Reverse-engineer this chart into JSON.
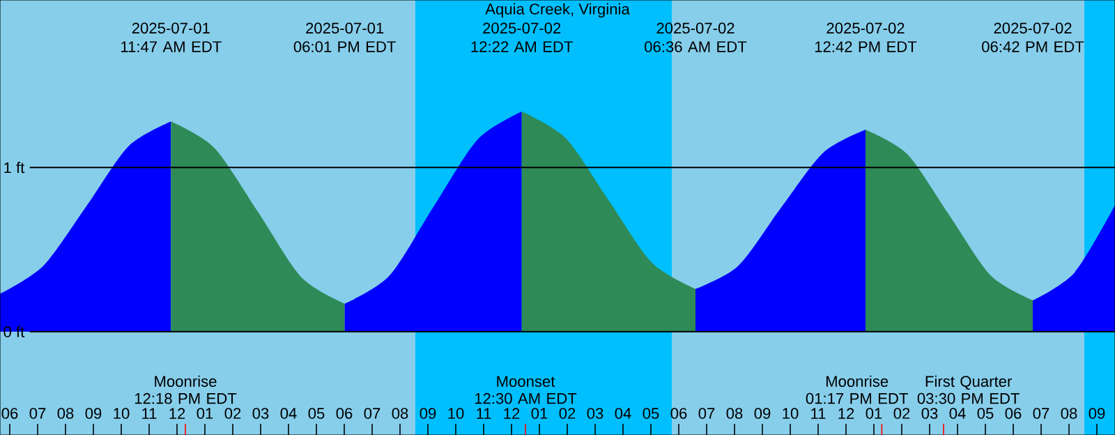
{
  "chart_data": {
    "type": "area",
    "title": "Aquia Creek, Virginia",
    "xlim": [
      "2025-07-01T05:39",
      "2025-07-02T21:39"
    ],
    "ylim": [
      -0.63,
      2.02
    ],
    "xticks": [
      {
        "value": "2025-07-01T06:00",
        "label": "06"
      },
      {
        "value": "2025-07-01T07:00",
        "label": "07"
      },
      {
        "value": "2025-07-01T08:00",
        "label": "08"
      },
      {
        "value": "2025-07-01T09:00",
        "label": "09"
      },
      {
        "value": "2025-07-01T10:00",
        "label": "10"
      },
      {
        "value": "2025-07-01T11:00",
        "label": "11"
      },
      {
        "value": "2025-07-01T12:00",
        "label": "12"
      },
      {
        "value": "2025-07-01T12:18",
        "label": null
      },
      {
        "value": "2025-07-01T13:00",
        "label": "01"
      },
      {
        "value": "2025-07-01T14:00",
        "label": "02"
      },
      {
        "value": "2025-07-01T15:00",
        "label": "03"
      },
      {
        "value": "2025-07-01T16:00",
        "label": "04"
      },
      {
        "value": "2025-07-01T17:00",
        "label": "05"
      },
      {
        "value": "2025-07-01T18:00",
        "label": "06"
      },
      {
        "value": "2025-07-01T19:00",
        "label": "07"
      },
      {
        "value": "2025-07-01T20:00",
        "label": "08"
      },
      {
        "value": "2025-07-01T21:00",
        "label": "09"
      },
      {
        "value": "2025-07-01T22:00",
        "label": "10"
      },
      {
        "value": "2025-07-01T23:00",
        "label": "11"
      },
      {
        "value": "2025-07-02T00:00",
        "label": "12"
      },
      {
        "value": "2025-07-02T00:30",
        "label": null
      },
      {
        "value": "2025-07-02T01:00",
        "label": "01"
      },
      {
        "value": "2025-07-02T02:00",
        "label": "02"
      },
      {
        "value": "2025-07-02T03:00",
        "label": "03"
      },
      {
        "value": "2025-07-02T04:00",
        "label": "04"
      },
      {
        "value": "2025-07-02T05:00",
        "label": "05"
      },
      {
        "value": "2025-07-02T06:00",
        "label": "06"
      },
      {
        "value": "2025-07-02T07:00",
        "label": "07"
      },
      {
        "value": "2025-07-02T08:00",
        "label": "08"
      },
      {
        "value": "2025-07-02T09:00",
        "label": "09"
      },
      {
        "value": "2025-07-02T10:00",
        "label": "10"
      },
      {
        "value": "2025-07-02T11:00",
        "label": "11"
      },
      {
        "value": "2025-07-02T12:00",
        "label": "12"
      },
      {
        "value": "2025-07-02T13:00",
        "label": "01"
      },
      {
        "value": "2025-07-02T13:17",
        "label": null
      },
      {
        "value": "2025-07-02T14:00",
        "label": "02"
      },
      {
        "value": "2025-07-02T15:00",
        "label": "03"
      },
      {
        "value": "2025-07-02T15:30",
        "label": null
      },
      {
        "value": "2025-07-02T16:00",
        "label": "04"
      },
      {
        "value": "2025-07-02T17:00",
        "label": "05"
      },
      {
        "value": "2025-07-02T18:00",
        "label": "06"
      },
      {
        "value": "2025-07-02T19:00",
        "label": "07"
      },
      {
        "value": "2025-07-02T20:00",
        "label": "08"
      },
      {
        "value": "2025-07-02T21:00",
        "label": "09"
      }
    ],
    "yticks": [
      {
        "value": 0,
        "label": "0 ft"
      },
      {
        "value": 1,
        "label": "1 ft"
      }
    ],
    "grid": "y",
    "bands": [
      {
        "axis": "x",
        "from": "2025-07-01T05:39",
        "to": "2025-07-01T20:33",
        "color": "#87ceeb"
      },
      {
        "axis": "x",
        "from": "2025-07-01T20:33",
        "to": "2025-07-02T05:45",
        "color": "#00bfff"
      },
      {
        "axis": "x",
        "from": "2025-07-02T05:45",
        "to": "2025-07-02T20:33",
        "color": "#87ceeb"
      },
      {
        "axis": "x",
        "from": "2025-07-02T20:33",
        "to": "2025-07-02T21:39",
        "color": "#00bfff"
      }
    ],
    "series": [
      {
        "color": "#0000ff",
        "x": [
          "2025-07-01T05:39",
          "2025-07-01T07:12",
          "2025-07-01T08:44",
          "2025-07-01T10:16",
          "2025-07-01T11:47"
        ],
        "values": [
          0.23,
          0.4,
          0.76,
          1.13,
          1.28
        ]
      },
      {
        "color": "#2e8b57",
        "x": [
          "2025-07-01T11:47",
          "2025-07-01T13:20",
          "2025-07-01T14:54",
          "2025-07-01T16:28",
          "2025-07-01T18:01"
        ],
        "values": [
          1.28,
          1.12,
          0.73,
          0.33,
          0.17
        ]
      },
      {
        "color": "#0000ff",
        "x": [
          "2025-07-01T18:01",
          "2025-07-01T19:37",
          "2025-07-01T21:12",
          "2025-07-01T22:47",
          "2025-07-02T00:22"
        ],
        "values": [
          0.17,
          0.34,
          0.76,
          1.17,
          1.34
        ]
      },
      {
        "color": "#2e8b57",
        "x": [
          "2025-07-02T00:22",
          "2025-07-02T01:56",
          "2025-07-02T03:29",
          "2025-07-02T05:02",
          "2025-07-02T06:36"
        ],
        "values": [
          1.34,
          1.18,
          0.8,
          0.42,
          0.26
        ]
      },
      {
        "color": "#0000ff",
        "x": [
          "2025-07-02T06:36",
          "2025-07-02T08:08",
          "2025-07-02T09:39",
          "2025-07-02T11:11",
          "2025-07-02T12:42"
        ],
        "values": [
          0.26,
          0.4,
          0.75,
          1.09,
          1.23
        ]
      },
      {
        "color": "#2e8b57",
        "x": [
          "2025-07-02T12:42",
          "2025-07-02T14:12",
          "2025-07-02T15:42",
          "2025-07-02T17:12",
          "2025-07-02T18:42"
        ],
        "values": [
          1.23,
          1.08,
          0.71,
          0.34,
          0.19
        ]
      },
      {
        "color": "#0000ff",
        "x": [
          "2025-07-02T18:42",
          "2025-07-02T20:12",
          "2025-07-02T21:39"
        ],
        "values": [
          0.19,
          0.36,
          0.77
        ]
      }
    ],
    "annotations": [
      "2025-07-01 11:47 AM EDT",
      "2025-07-01 06:01 PM EDT",
      "2025-07-02 12:22 AM EDT",
      "2025-07-02 06:36 AM EDT",
      "2025-07-02 12:42 PM EDT",
      "2025-07-02 06:42 PM EDT",
      "Moonrise 12:18 PM EDT",
      "Moonset 12:30 AM EDT",
      "Moonrise 01:17 PM EDT",
      "First Quarter 03:30 PM EDT"
    ]
  }
}
